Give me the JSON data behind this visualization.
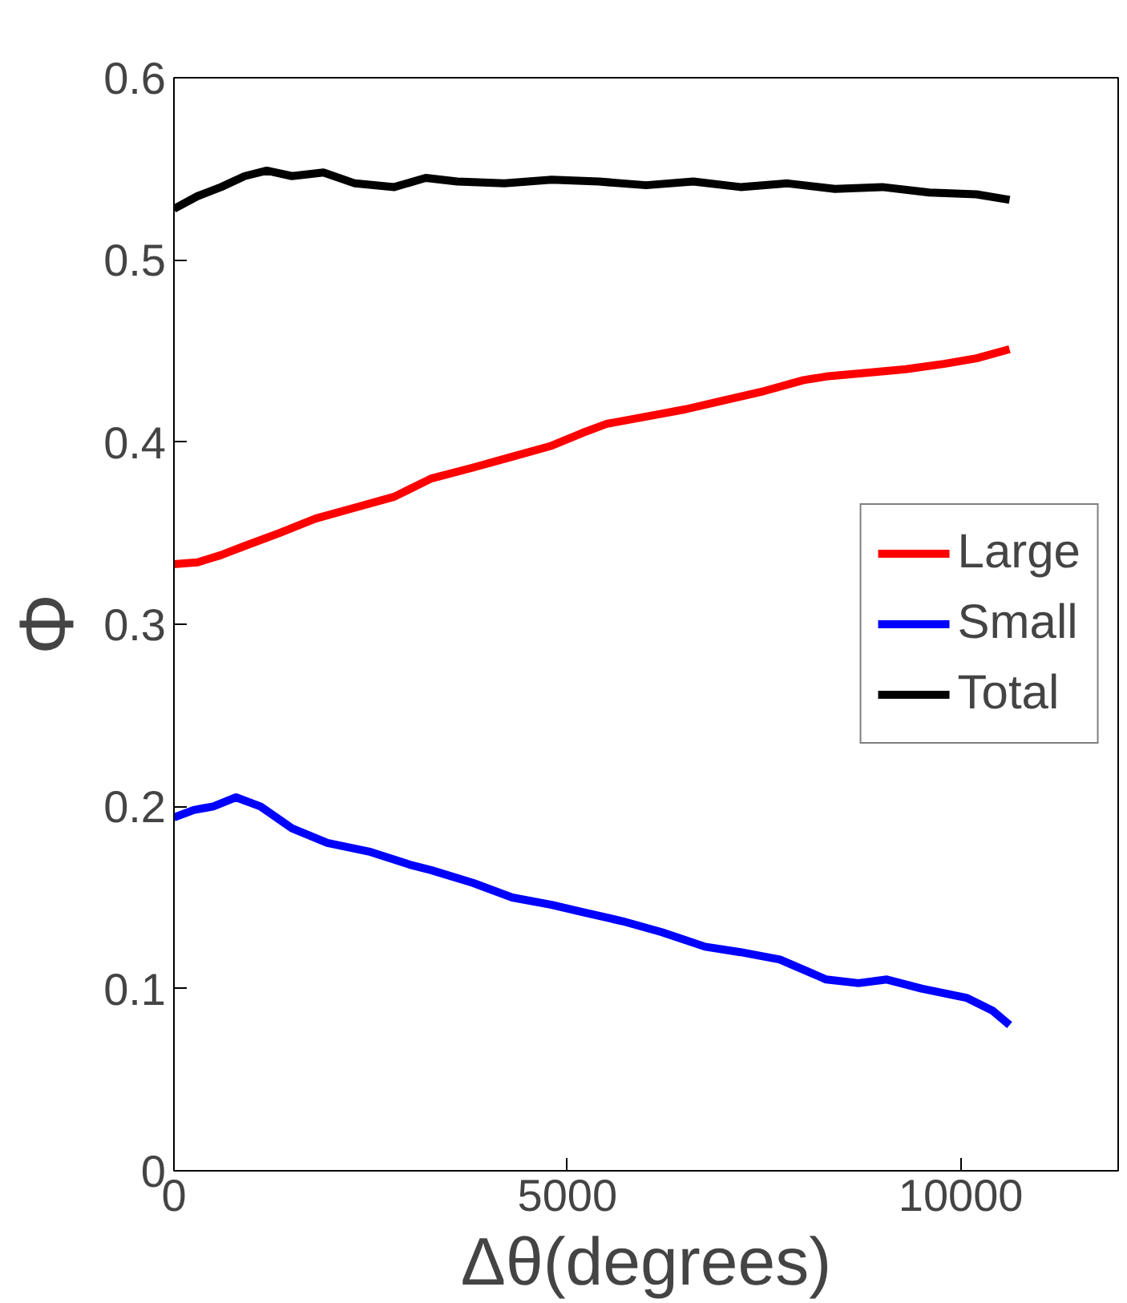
{
  "chart_data": {
    "type": "line",
    "xlabel": "Δθ(degrees)",
    "ylabel": "Φ",
    "xlim": [
      0,
      12000
    ],
    "ylim": [
      0,
      0.6
    ],
    "xticks": [
      0,
      5000,
      10000
    ],
    "yticks": [
      0,
      0.1,
      0.2,
      0.3,
      0.4,
      0.5,
      0.6
    ],
    "grid": false,
    "legend": "right",
    "line_style": "solid",
    "marker": "none",
    "series": [
      {
        "name": "Large",
        "color": "#ff0000",
        "x": [
          0,
          300,
          600,
          900,
          1335,
          1800,
          2300,
          2800,
          3270,
          3800,
          4300,
          4800,
          5190,
          5500,
          6000,
          6500,
          7000,
          7500,
          8000,
          8290,
          8800,
          9300,
          9800,
          10200,
          10620
        ],
        "values": [
          0.333,
          0.334,
          0.338,
          0.343,
          0.35,
          0.358,
          0.364,
          0.37,
          0.38,
          0.386,
          0.392,
          0.398,
          0.405,
          0.41,
          0.414,
          0.418,
          0.423,
          0.428,
          0.434,
          0.436,
          0.438,
          0.44,
          0.443,
          0.446,
          0.451
        ]
      },
      {
        "name": "Small",
        "color": "#0000ff",
        "x": [
          0,
          250,
          500,
          790,
          1100,
          1500,
          1950,
          2500,
          3000,
          3270,
          3800,
          4300,
          4800,
          5190,
          5700,
          6200,
          6750,
          7200,
          7700,
          8290,
          8700,
          9060,
          9500,
          10070,
          10400,
          10620
        ],
        "values": [
          0.194,
          0.198,
          0.2,
          0.205,
          0.2,
          0.188,
          0.18,
          0.175,
          0.168,
          0.165,
          0.158,
          0.15,
          0.146,
          0.142,
          0.137,
          0.131,
          0.123,
          0.12,
          0.116,
          0.105,
          0.103,
          0.105,
          0.1,
          0.095,
          0.088,
          0.08
        ]
      },
      {
        "name": "Total",
        "color": "#000000",
        "x": [
          0,
          300,
          600,
          900,
          1180,
          1500,
          1900,
          2300,
          2800,
          3200,
          3600,
          4200,
          4800,
          5400,
          6000,
          6600,
          7200,
          7800,
          8400,
          9000,
          9600,
          10200,
          10620
        ],
        "values": [
          0.528,
          0.535,
          0.54,
          0.546,
          0.549,
          0.546,
          0.548,
          0.542,
          0.54,
          0.545,
          0.543,
          0.542,
          0.544,
          0.543,
          0.541,
          0.543,
          0.54,
          0.542,
          0.539,
          0.54,
          0.537,
          0.536,
          0.533
        ]
      }
    ]
  }
}
